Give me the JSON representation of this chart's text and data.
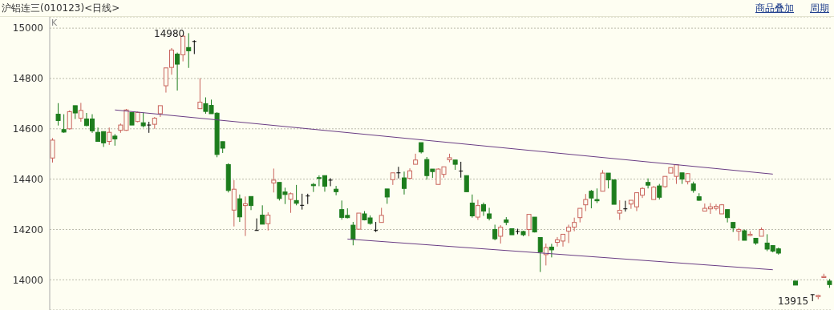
{
  "chart_data": {
    "type": "candlestick",
    "title": "沪铝连三(010123)<日线>",
    "annotations": [
      "K",
      "14980",
      "13915",
      "商品叠加",
      "周期"
    ],
    "categories": [
      null,
      null,
      null,
      null,
      null,
      null,
      null,
      null,
      null,
      null,
      null,
      null,
      null,
      null,
      null,
      null,
      null,
      null,
      null,
      null,
      null,
      null,
      null,
      null,
      null,
      null,
      null,
      null,
      null,
      null,
      null,
      null,
      null,
      null,
      null,
      null,
      null,
      null,
      null,
      null,
      null,
      null,
      null,
      null,
      null,
      null,
      null,
      null,
      null,
      null,
      null,
      null,
      null,
      null,
      null,
      null,
      null,
      null,
      null,
      null,
      null,
      null,
      null,
      null,
      null,
      null,
      null,
      null,
      null,
      null,
      null,
      null,
      null,
      null,
      null,
      null,
      null,
      null,
      null,
      null,
      null,
      null,
      null,
      null,
      null,
      null,
      null,
      null,
      null,
      null,
      null,
      null,
      null,
      null,
      null,
      null,
      null,
      null,
      null,
      null,
      null,
      null,
      null,
      null,
      null,
      null,
      null,
      null,
      null,
      null,
      null,
      null,
      null,
      null,
      null,
      null,
      null,
      null,
      null,
      null,
      null,
      null,
      null,
      null,
      null,
      null,
      null,
      null,
      null,
      null,
      null,
      null,
      null,
      null,
      null,
      null,
      null,
      null
    ],
    "series": [
      {
        "ohlc": [
          [
            14484,
            14563,
            14466,
            14555
          ],
          [
            14658,
            14702,
            14613,
            14633
          ],
          [
            14597,
            14658,
            14584,
            14587
          ],
          [
            14600,
            14673,
            14597,
            14668
          ],
          [
            14692,
            14692,
            14639,
            14663
          ],
          [
            14642,
            14703,
            14628,
            14673
          ],
          [
            14639,
            14663,
            14610,
            14613
          ],
          [
            14639,
            14658,
            14584,
            14592
          ],
          [
            14586,
            14605,
            14550,
            14550
          ],
          [
            14589,
            14589,
            14528,
            14544
          ],
          [
            14550,
            14605,
            14536,
            14586
          ],
          [
            14571,
            14579,
            14533,
            14560
          ],
          [
            14594,
            14621,
            14584,
            14615
          ],
          [
            14594,
            14679,
            14592,
            14675
          ],
          [
            14665,
            14665,
            14615,
            14615
          ],
          [
            14629,
            14668,
            14626,
            14665
          ],
          [
            14624,
            14665,
            14605,
            14612
          ],
          [
            14615,
            14628,
            14584,
            14615
          ],
          [
            14618,
            14647,
            14600,
            14642
          ],
          [
            14660,
            14692,
            14647,
            14692
          ],
          [
            14771,
            14842,
            14744,
            14842
          ],
          [
            14844,
            14921,
            14815,
            14913
          ],
          [
            14897,
            14903,
            14752,
            14857
          ],
          [
            14894,
            14973,
            14868,
            14968
          ],
          [
            14923,
            14980,
            14842,
            14910
          ],
          [
            14947,
            14952,
            14897,
            14947
          ],
          [
            14680,
            14801,
            14680,
            14706
          ],
          [
            14700,
            14725,
            14660,
            14669
          ],
          [
            14693,
            14716,
            14660,
            14660
          ],
          [
            14662,
            14666,
            14487,
            14498
          ],
          [
            14549,
            14549,
            14504,
            14523
          ],
          [
            14458,
            14463,
            14347,
            14355
          ],
          [
            14277,
            14396,
            14212,
            14360
          ],
          [
            14322,
            14339,
            14230,
            14250
          ],
          [
            14295,
            14331,
            14174,
            14302
          ],
          [
            14331,
            14331,
            14277,
            14295
          ],
          [
            14196,
            14244,
            14196,
            14196
          ],
          [
            14257,
            14296,
            14221,
            14221
          ],
          [
            14223,
            14268,
            14196,
            14257
          ],
          [
            14385,
            14442,
            14347,
            14396
          ],
          [
            14387,
            14387,
            14315,
            14323
          ],
          [
            14349,
            14366,
            14301,
            14339
          ],
          [
            14320,
            14347,
            14266,
            14342
          ],
          [
            14315,
            14377,
            14296,
            14304
          ],
          [
            14296,
            14342,
            14279,
            14296
          ],
          [
            14333,
            14342,
            14301,
            14333
          ],
          [
            14379,
            14385,
            14349,
            14374
          ],
          [
            14406,
            14415,
            14372,
            14403
          ],
          [
            14414,
            14414,
            14350,
            14372
          ],
          [
            14396,
            14404,
            14372,
            14396
          ],
          [
            14360,
            14373,
            14336,
            14350
          ],
          [
            14279,
            14315,
            14239,
            14248
          ],
          [
            14256,
            14284,
            14244,
            14247
          ],
          [
            14217,
            14230,
            14137,
            14161
          ],
          [
            14201,
            14265,
            14201,
            14265
          ],
          [
            14262,
            14273,
            14236,
            14238
          ],
          [
            14246,
            14256,
            14219,
            14224
          ],
          [
            14196,
            14230,
            14190,
            14196
          ],
          [
            14228,
            14286,
            14228,
            14256
          ],
          [
            14361,
            14361,
            14302,
            14329
          ],
          [
            14398,
            14425,
            14377,
            14425
          ],
          [
            14425,
            14449,
            14403,
            14425
          ],
          [
            14405,
            14430,
            14339,
            14363
          ],
          [
            14403,
            14443,
            14400,
            14433
          ],
          [
            14459,
            14501,
            14459,
            14476
          ],
          [
            14545,
            14545,
            14502,
            14508
          ],
          [
            14478,
            14488,
            14398,
            14414
          ],
          [
            14440,
            14440,
            14405,
            14430
          ],
          [
            14379,
            14443,
            14379,
            14440
          ],
          [
            14419,
            14449,
            14406,
            14449
          ],
          [
            14477,
            14501,
            14467,
            14485
          ],
          [
            14476,
            14476,
            14437,
            14459
          ],
          [
            14432,
            14469,
            14406,
            14432
          ],
          [
            14414,
            14414,
            14350,
            14350
          ],
          [
            14305,
            14339,
            14247,
            14254
          ],
          [
            14249,
            14318,
            14238,
            14295
          ],
          [
            14299,
            14307,
            14254,
            14273
          ],
          [
            14262,
            14286,
            14236,
            14244
          ],
          [
            14200,
            14219,
            14157,
            14163
          ],
          [
            14173,
            14217,
            14144,
            14209
          ],
          [
            14238,
            14249,
            14217,
            14228
          ],
          [
            14203,
            14203,
            14179,
            14179
          ],
          [
            14192,
            14203,
            14181,
            14192
          ],
          [
            14192,
            14195,
            14173,
            14179
          ],
          [
            14200,
            14260,
            14173,
            14260
          ],
          [
            14249,
            14249,
            14188,
            14190
          ],
          [
            14168,
            14168,
            14031,
            14111
          ],
          [
            14100,
            14144,
            14057,
            14128
          ],
          [
            14130,
            14143,
            14089,
            14119
          ],
          [
            14149,
            14170,
            14132,
            14159
          ],
          [
            14154,
            14181,
            14132,
            14181
          ],
          [
            14193,
            14219,
            14146,
            14209
          ],
          [
            14209,
            14247,
            14193,
            14228
          ],
          [
            14247,
            14284,
            14228,
            14284
          ],
          [
            14298,
            14341,
            14273,
            14319
          ],
          [
            14352,
            14357,
            14284,
            14325
          ],
          [
            14319,
            14363,
            14305,
            14314
          ],
          [
            14352,
            14436,
            14352,
            14424
          ],
          [
            14424,
            14424,
            14363,
            14397
          ],
          [
            14397,
            14397,
            14300,
            14300
          ],
          [
            14265,
            14316,
            14238,
            14276
          ],
          [
            14282,
            14314,
            14271,
            14282
          ],
          [
            14301,
            14316,
            14282,
            14316
          ],
          [
            14290,
            14346,
            14273,
            14346
          ],
          [
            14336,
            14368,
            14325,
            14363
          ],
          [
            14387,
            14403,
            14363,
            14376
          ],
          [
            14319,
            14373,
            14319,
            14368
          ],
          [
            14373,
            14381,
            14319,
            14328
          ],
          [
            14370,
            14411,
            14366,
            14411
          ],
          [
            14424,
            14446,
            14424,
            14446
          ],
          [
            14411,
            14457,
            14381,
            14457
          ],
          [
            14425,
            14425,
            14381,
            14400
          ],
          [
            14390,
            14424,
            14379,
            14422
          ],
          [
            14381,
            14390,
            14346,
            14355
          ],
          [
            14330,
            14344,
            14314,
            14316
          ],
          [
            14273,
            14303,
            14273,
            14284
          ],
          [
            14282,
            14305,
            14262,
            14290
          ],
          [
            14284,
            14301,
            14276,
            14292
          ],
          [
            14262,
            14301,
            14262,
            14298
          ],
          [
            14279,
            14279,
            14228,
            14247
          ],
          [
            14228,
            14228,
            14190,
            14206
          ],
          [
            14193,
            14206,
            14155,
            14200
          ],
          [
            14195,
            14200,
            14157,
            14157
          ],
          [
            14176,
            14193,
            14173,
            14181
          ],
          [
            14165,
            14165,
            14139,
            14146
          ],
          [
            14173,
            14208,
            14173,
            14200
          ],
          [
            14146,
            14181,
            14114,
            14122
          ],
          [
            14136,
            14136,
            14109,
            14114
          ],
          [
            14123,
            14128,
            14100,
            14106
          ],
          null,
          null,
          [
            13995,
            13995,
            13979,
            13979
          ],
          null,
          null,
          [
            13941,
            13941,
            13915,
            13941
          ],
          [
            13933,
            13941,
            13923,
            13938
          ],
          [
            14009,
            14024,
            14009,
            14013
          ],
          [
            13995,
            14003,
            13968,
            13981
          ]
        ]
      },
      {
        "type": "line",
        "color": "#6a3d84",
        "values": [
          null,
          null,
          null,
          null,
          null,
          null,
          null,
          null,
          null,
          null,
          null,
          14675,
          null,
          null,
          null,
          null,
          null,
          null,
          null,
          null,
          null,
          null,
          null,
          null,
          null,
          null,
          null,
          null,
          null,
          null,
          null,
          null,
          null,
          null,
          null,
          null,
          null,
          null,
          null,
          null,
          null,
          null,
          null,
          null,
          null,
          null,
          null,
          null,
          null,
          null,
          null,
          null,
          null,
          null,
          null,
          null,
          null,
          null,
          null,
          null,
          null,
          null,
          null,
          null,
          null,
          null,
          null,
          null,
          null,
          null,
          null,
          null,
          null,
          null,
          null,
          null,
          null,
          null,
          null,
          null,
          null,
          null,
          null,
          null,
          null,
          null,
          null,
          null,
          null,
          null,
          null,
          null,
          null,
          null,
          null,
          null,
          null,
          null,
          null,
          null,
          null,
          null,
          null,
          null,
          null,
          null,
          null,
          null,
          null,
          null,
          null,
          null,
          null,
          null,
          null,
          null,
          null,
          null,
          null,
          null,
          null,
          null,
          null,
          null,
          null,
          null,
          null,
          14420,
          null,
          null,
          null,
          null,
          null,
          null,
          null,
          null,
          null,
          null
        ]
      },
      {
        "type": "line",
        "color": "#6a3d84",
        "values": [
          null,
          null,
          null,
          null,
          null,
          null,
          null,
          null,
          null,
          null,
          null,
          null,
          null,
          null,
          null,
          null,
          null,
          null,
          null,
          null,
          null,
          null,
          null,
          null,
          null,
          null,
          null,
          null,
          null,
          null,
          null,
          null,
          null,
          null,
          null,
          null,
          null,
          null,
          null,
          null,
          null,
          null,
          null,
          null,
          null,
          null,
          null,
          null,
          null,
          null,
          null,
          null,
          14162,
          null,
          null,
          null,
          null,
          null,
          null,
          null,
          null,
          null,
          null,
          null,
          null,
          null,
          null,
          null,
          null,
          null,
          null,
          null,
          null,
          null,
          null,
          null,
          null,
          null,
          null,
          null,
          null,
          null,
          null,
          null,
          null,
          null,
          null,
          null,
          null,
          null,
          null,
          null,
          null,
          null,
          null,
          null,
          null,
          null,
          null,
          null,
          null,
          null,
          null,
          null,
          null,
          null,
          null,
          null,
          null,
          null,
          null,
          null,
          null,
          null,
          null,
          null,
          null,
          null,
          null,
          null,
          null,
          null,
          null,
          null,
          null,
          null,
          null,
          14040,
          null,
          null,
          null,
          null,
          null,
          null,
          null,
          null,
          null,
          null
        ]
      }
    ],
    "ylim": [
      13880,
      15045
    ],
    "yticks": [
      14000,
      14200,
      14400,
      14600,
      14800,
      15000
    ],
    "grid": "y",
    "tick_labels": "y"
  }
}
